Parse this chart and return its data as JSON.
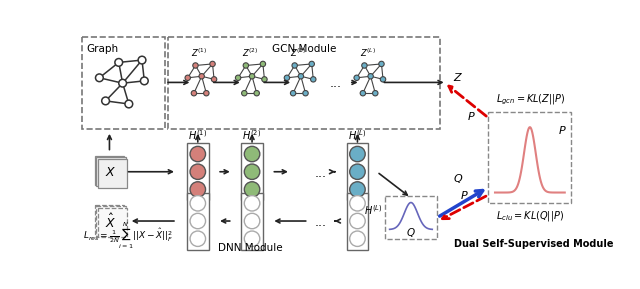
{
  "bg_color": "#ffffff",
  "graph_label": "Graph",
  "gcn_label": "GCN Module",
  "dnn_label": "DNN Module",
  "dual_label": "Dual Self-Supervised Module",
  "node_color_z1": "#d4807a",
  "node_color_z2": "#8fba78",
  "node_color_zL": "#6aaec6",
  "red_arrow": "#dd0000",
  "blue_arrow": "#2244cc",
  "graph_node_color": "#ffffff",
  "graph_edge_color": "#333333"
}
